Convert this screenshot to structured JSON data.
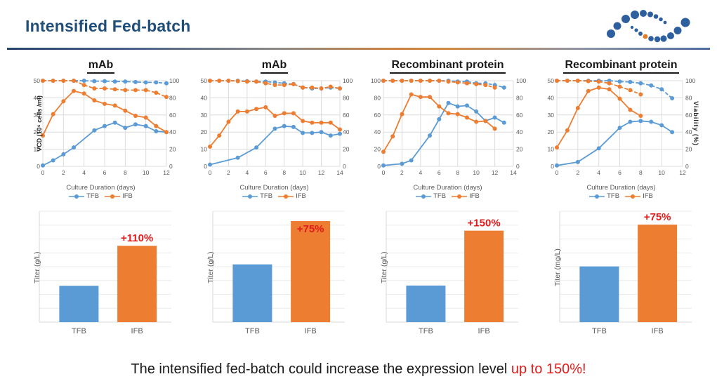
{
  "header": {
    "title": "Intensified Fed-batch"
  },
  "caption": {
    "text_black": "The intensified fed-batch could increase the expression level ",
    "text_red": "up to 150%!"
  },
  "colors": {
    "series_blue": "#5b9bd5",
    "series_orange": "#ed7d31",
    "annotation_red": "#e01b1b",
    "title_navy": "#1f4e79",
    "grid": "#dcdcdc",
    "tick": "#595959",
    "logo_blue": "#2e5f9e",
    "logo_orange": "#e07b2a"
  },
  "chart_data": [
    {
      "type": "line",
      "title": "mAb",
      "xlabel": "Culture Duration (days)",
      "ylabel_left": "VCD (10⁶ cells /ml)",
      "ylabel_right": null,
      "xlim": [
        0,
        12
      ],
      "xticks": [
        0,
        2,
        4,
        6,
        8,
        10,
        12
      ],
      "yleft_lim": [
        0,
        50
      ],
      "yleft_ticks": [
        0,
        10,
        20,
        30,
        40,
        50
      ],
      "yright_lim": [
        0,
        100
      ],
      "yright_ticks": [
        0,
        20,
        40,
        60,
        80,
        100
      ],
      "legend": [
        "TFB",
        "IFB"
      ],
      "grid": true,
      "legend_position": "bottom",
      "series": [
        {
          "name": "TFB VCD",
          "color": "blue",
          "dash": false,
          "axis": "left",
          "x": [
            0,
            1,
            2,
            3,
            5,
            6,
            7,
            8,
            9,
            10,
            11,
            12
          ],
          "y": [
            0.5,
            3.5,
            7,
            11,
            21,
            23.5,
            25.5,
            22.5,
            24.5,
            23.5,
            20.5,
            20
          ]
        },
        {
          "name": "IFB VCD",
          "color": "orange",
          "dash": false,
          "axis": "left",
          "x": [
            0,
            1,
            2,
            3,
            4,
            5,
            6,
            7,
            8,
            9,
            10,
            11,
            12
          ],
          "y": [
            18,
            30.5,
            38,
            44,
            42.5,
            38.5,
            36.5,
            35.5,
            32.5,
            29.5,
            28.5,
            23.5,
            20
          ]
        },
        {
          "name": "TFB Viability",
          "color": "blue",
          "dash": true,
          "axis": "right",
          "x": [
            0,
            1,
            2,
            3,
            4,
            5,
            6,
            7,
            8,
            9,
            10,
            11,
            12
          ],
          "y": [
            100,
            100,
            100,
            100,
            100,
            99.5,
            99.5,
            99,
            99,
            98.5,
            98,
            98,
            97
          ]
        },
        {
          "name": "IFB Viability",
          "color": "orange",
          "dash": true,
          "axis": "right",
          "x": [
            0,
            1,
            2,
            3,
            4,
            5,
            6,
            7,
            8,
            9,
            10,
            11,
            12
          ],
          "y": [
            100,
            100,
            100,
            100,
            95,
            91,
            91,
            90,
            89,
            89,
            89,
            86,
            81
          ]
        }
      ]
    },
    {
      "type": "bar",
      "ylabel": "Titer (g/L)",
      "categories": [
        "TFB",
        "IFB"
      ],
      "values": [
        1,
        2.1
      ],
      "ymax": 3.05,
      "bar_colors": [
        "blue",
        "orange"
      ],
      "annotation": "+110%",
      "annotation_inside": false
    },
    {
      "type": "line",
      "title": "mAb",
      "xlabel": "Culture Duration (days)",
      "ylabel_left": null,
      "ylabel_right": null,
      "xlim": [
        0,
        14
      ],
      "xticks": [
        0,
        2,
        4,
        6,
        8,
        10,
        12,
        14
      ],
      "yleft_lim": [
        0,
        50
      ],
      "yleft_ticks": [
        0,
        10,
        20,
        30,
        40,
        50
      ],
      "yright_lim": [
        0,
        100
      ],
      "yright_ticks": [
        0,
        20,
        40,
        60,
        80,
        100
      ],
      "legend": [
        "TFB",
        "IFB"
      ],
      "grid": true,
      "legend_position": "bottom",
      "series": [
        {
          "name": "TFB VCD",
          "color": "blue",
          "dash": false,
          "axis": "left",
          "x": [
            0,
            3,
            5,
            7,
            8,
            9,
            10,
            11,
            12,
            13,
            14
          ],
          "y": [
            1,
            5,
            11,
            22,
            23.5,
            23,
            19.5,
            19.5,
            20,
            18,
            19
          ]
        },
        {
          "name": "IFB VCD",
          "color": "orange",
          "dash": false,
          "axis": "left",
          "x": [
            0,
            1,
            2,
            3,
            4,
            5,
            6,
            7,
            8,
            9,
            10,
            11,
            12,
            13,
            14
          ],
          "y": [
            11.5,
            18,
            26,
            32,
            32,
            33.5,
            34.5,
            29.5,
            31,
            31,
            26.5,
            25.5,
            25.5,
            25.5,
            21.5
          ]
        },
        {
          "name": "TFB Viability",
          "color": "blue",
          "dash": true,
          "axis": "right",
          "x": [
            0,
            1,
            2,
            3,
            4,
            5,
            6,
            7,
            8,
            9,
            10,
            11,
            12,
            13,
            14
          ],
          "y": [
            100,
            100,
            100,
            100,
            99.5,
            99,
            99,
            98,
            97,
            96,
            92,
            91,
            91,
            92,
            91
          ]
        },
        {
          "name": "IFB Viability",
          "color": "orange",
          "dash": true,
          "axis": "right",
          "x": [
            0,
            1,
            2,
            3,
            4,
            5,
            6,
            7,
            8,
            9,
            10,
            11,
            12,
            13,
            14
          ],
          "y": [
            100,
            100,
            100,
            99.5,
            99,
            99,
            97,
            95,
            95,
            96,
            92,
            92,
            91,
            93,
            91
          ]
        }
      ]
    },
    {
      "type": "bar",
      "ylabel": "Titer (g/L)",
      "categories": [
        "TFB",
        "IFB"
      ],
      "values": [
        1,
        1.75
      ],
      "ymax": 1.92,
      "bar_colors": [
        "blue",
        "orange"
      ],
      "annotation": "+75%",
      "annotation_inside": true
    },
    {
      "type": "line",
      "title": "Recombinant protein",
      "xlabel": "Culture Duration (days)",
      "ylabel_left": null,
      "ylabel_right": null,
      "xlim": [
        0,
        14
      ],
      "xticks": [
        0,
        2,
        4,
        6,
        8,
        10,
        12,
        14
      ],
      "yleft_lim": [
        0,
        100
      ],
      "yleft_ticks": [
        0,
        20,
        40,
        60,
        80,
        100
      ],
      "yright_lim": [
        0,
        100
      ],
      "yright_ticks": [
        0,
        20,
        40,
        60,
        80,
        100
      ],
      "legend": [
        "TFB",
        "IFB"
      ],
      "grid": true,
      "legend_position": "bottom",
      "series": [
        {
          "name": "TFB VCD",
          "color": "blue",
          "dash": false,
          "axis": "left",
          "x": [
            0,
            2,
            3,
            5,
            6,
            7,
            8,
            9,
            10,
            11,
            12,
            13
          ],
          "y": [
            1,
            3,
            7,
            36,
            55,
            74,
            70,
            71,
            64,
            53,
            57,
            51
          ]
        },
        {
          "name": "IFB VCD",
          "color": "orange",
          "dash": false,
          "axis": "left",
          "x": [
            0,
            1,
            2,
            3,
            4,
            5,
            6,
            7,
            8,
            9,
            10,
            11,
            12
          ],
          "y": [
            17,
            35,
            61,
            84,
            81,
            81,
            70,
            62,
            61,
            57,
            52,
            53,
            44
          ]
        },
        {
          "name": "TFB Viability",
          "color": "blue",
          "dash": true,
          "axis": "right",
          "x": [
            0,
            1,
            2,
            3,
            4,
            5,
            6,
            7,
            8,
            9,
            10,
            11,
            12,
            13
          ],
          "y": [
            100,
            100,
            100,
            100,
            100,
            100,
            100,
            100,
            99,
            99,
            97,
            97,
            95,
            92
          ]
        },
        {
          "name": "IFB Viability",
          "color": "orange",
          "dash": true,
          "axis": "right",
          "x": [
            0,
            1,
            2,
            3,
            4,
            5,
            6,
            7,
            8,
            9,
            10,
            11,
            12
          ],
          "y": [
            100,
            100,
            100,
            100,
            100,
            100,
            100,
            99,
            98,
            97,
            96,
            95,
            92
          ]
        }
      ]
    },
    {
      "type": "bar",
      "ylabel": "Titer (g/L)",
      "categories": [
        "TFB",
        "IFB"
      ],
      "values": [
        1,
        2.5
      ],
      "ymax": 3.03,
      "bar_colors": [
        "blue",
        "orange"
      ],
      "annotation": "+150%",
      "annotation_inside": false
    },
    {
      "type": "line",
      "title": "Recombinant protein",
      "xlabel": "Culture Duration (days)",
      "ylabel_left": null,
      "ylabel_right": "Viability (%)",
      "xlim": [
        0,
        12
      ],
      "xticks": [
        0,
        2,
        4,
        6,
        8,
        10,
        12
      ],
      "yleft_lim": [
        0,
        50
      ],
      "yleft_ticks": [
        0,
        10,
        20,
        30,
        40,
        50
      ],
      "yright_lim": [
        0,
        100
      ],
      "yright_ticks": [
        0,
        20,
        40,
        60,
        80,
        100
      ],
      "legend": [
        "TFB",
        "IFB"
      ],
      "grid": true,
      "legend_position": "bottom",
      "series": [
        {
          "name": "TFB VCD",
          "color": "blue",
          "dash": false,
          "axis": "left",
          "x": [
            0,
            2,
            4,
            6,
            7,
            8,
            9,
            10,
            11
          ],
          "y": [
            0.5,
            2.5,
            10.5,
            22.5,
            26,
            26.5,
            26,
            24,
            20
          ]
        },
        {
          "name": "IFB VCD",
          "color": "orange",
          "dash": false,
          "axis": "left",
          "x": [
            0,
            1,
            2,
            3,
            4,
            5,
            6,
            7,
            8
          ],
          "y": [
            11,
            21,
            34,
            44,
            46,
            45,
            39.5,
            33,
            29.5
          ]
        },
        {
          "name": "TFB Viability",
          "color": "blue",
          "dash": true,
          "axis": "right",
          "x": [
            0,
            1,
            2,
            3,
            4,
            5,
            6,
            7,
            8,
            9,
            10,
            11
          ],
          "y": [
            100,
            100,
            100,
            100,
            100,
            100,
            99,
            98.5,
            97,
            94.5,
            90,
            79.5
          ]
        },
        {
          "name": "IFB Viability",
          "color": "orange",
          "dash": true,
          "axis": "right",
          "x": [
            0,
            1,
            2,
            3,
            4,
            5,
            6,
            7,
            8
          ],
          "y": [
            100,
            100,
            100,
            99.5,
            99,
            97,
            93,
            89,
            84
          ]
        }
      ]
    },
    {
      "type": "bar",
      "ylabel": "Titer (mg/L)",
      "categories": [
        "TFB",
        "IFB"
      ],
      "values": [
        1,
        1.75
      ],
      "ymax": 1.99,
      "bar_colors": [
        "blue",
        "orange"
      ],
      "annotation": "+75%",
      "annotation_inside": false
    }
  ]
}
